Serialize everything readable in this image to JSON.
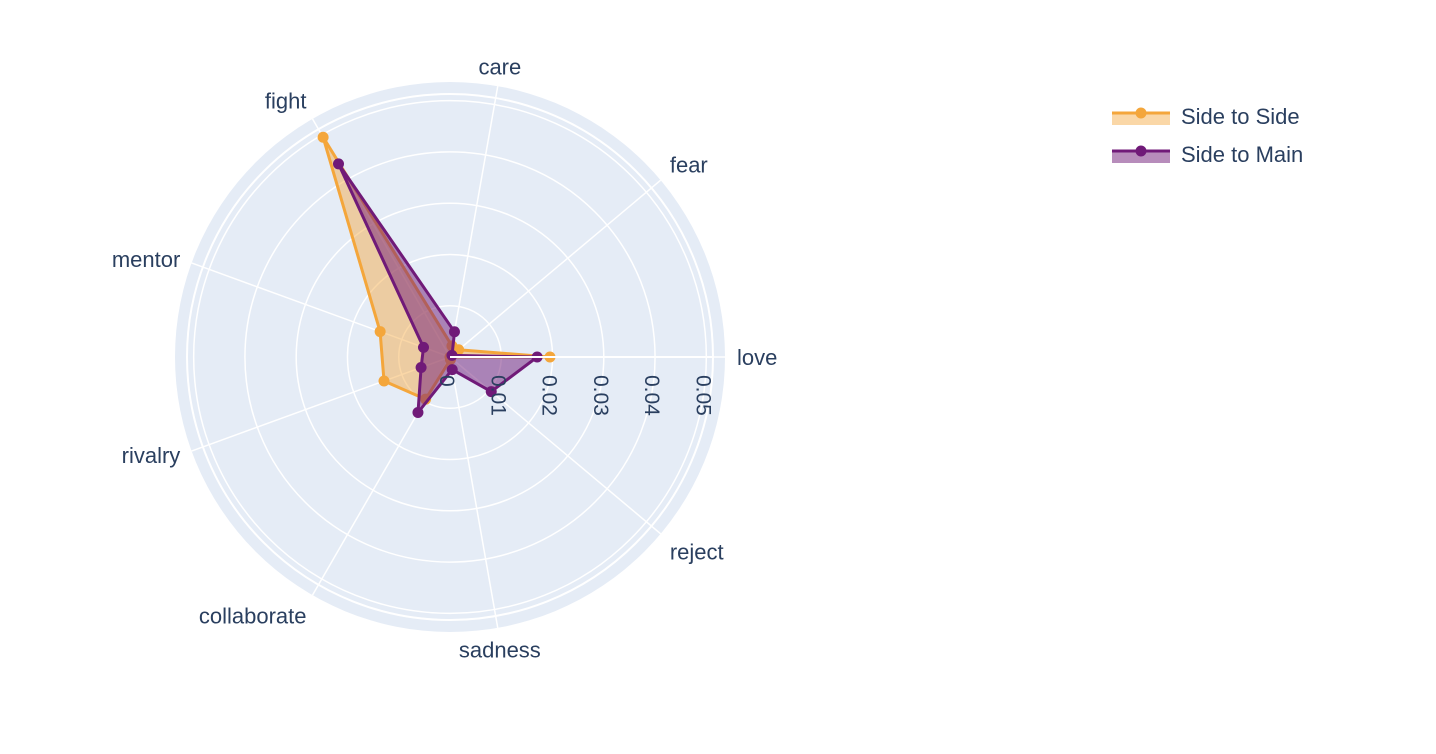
{
  "chart_data": {
    "type": "radar",
    "categories": [
      "love",
      "fear",
      "care",
      "fight",
      "mentor",
      "rivalry",
      "collaborate",
      "sadness",
      "reject"
    ],
    "radial_ticks": [
      "0",
      "0.01",
      "0.02",
      "0.03",
      "0.04",
      "0.05"
    ],
    "radial_range": [
      0,
      0.0513
    ],
    "series": [
      {
        "name": "Side to Side",
        "values": [
          0.0195,
          0.0022,
          0.0022,
          0.0495,
          0.0145,
          0.0137,
          0.0095,
          0.0005,
          0.0
        ],
        "line_color": "#f4a63b",
        "fill_color": "rgba(244,166,59,0.45)"
      },
      {
        "name": "Side to Main",
        "values": [
          0.017,
          0.0005,
          0.005,
          0.0435,
          0.0055,
          0.006,
          0.0125,
          0.0025,
          0.0105
        ],
        "line_color": "#701a78",
        "fill_color": "rgba(112,26,120,0.5)"
      }
    ],
    "legend_position": "top-right",
    "grid": true
  }
}
